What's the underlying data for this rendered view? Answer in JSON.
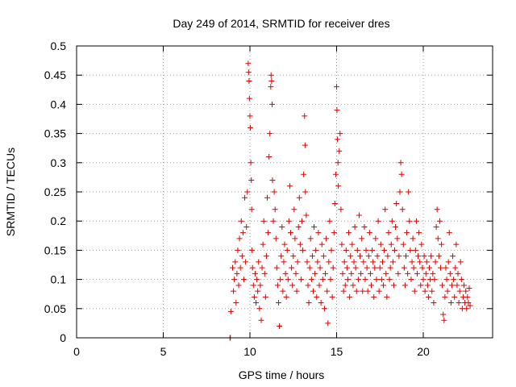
{
  "chart_data": {
    "type": "scatter",
    "title": "Day 249 of 2014, SRMTID for receiver dres",
    "xlabel": "GPS time / hours",
    "ylabel": "SRMTID / TECUs",
    "xlim": [
      0,
      24
    ],
    "ylim": [
      0,
      0.5
    ],
    "xticks": [
      0,
      5,
      10,
      15,
      20
    ],
    "yticks": [
      0,
      0.05,
      0.1,
      0.15,
      0.2,
      0.25,
      0.3,
      0.35,
      0.4,
      0.45,
      0.5
    ],
    "xtick_labels": [
      "0",
      "5",
      "10",
      "15",
      "20"
    ],
    "ytick_labels": [
      "0",
      "0.05",
      "0.1",
      "0.15",
      "0.2",
      "0.25",
      "0.3",
      "0.35",
      "0.4",
      "0.45",
      "0.5"
    ],
    "grid": true,
    "marker": "+",
    "color": "#e00000",
    "series": [
      {
        "name": "SRMTID",
        "points": [
          [
            8.85,
            0.0
          ],
          [
            8.87,
            0.0
          ],
          [
            8.9,
            0.045
          ],
          [
            9.0,
            0.12
          ],
          [
            9.05,
            0.08
          ],
          [
            9.1,
            0.1
          ],
          [
            9.15,
            0.13
          ],
          [
            9.2,
            0.06
          ],
          [
            9.25,
            0.11
          ],
          [
            9.3,
            0.15
          ],
          [
            9.35,
            0.09
          ],
          [
            9.4,
            0.17
          ],
          [
            9.45,
            0.12
          ],
          [
            9.5,
            0.2
          ],
          [
            9.55,
            0.14
          ],
          [
            9.6,
            0.18
          ],
          [
            9.65,
            0.1
          ],
          [
            9.7,
            0.24
          ],
          [
            9.75,
            0.13
          ],
          [
            9.8,
            0.19
          ],
          [
            9.85,
            0.25
          ],
          [
            9.9,
            0.47
          ],
          [
            9.92,
            0.455
          ],
          [
            9.95,
            0.44
          ],
          [
            9.97,
            0.41
          ],
          [
            10.0,
            0.38
          ],
          [
            10.02,
            0.36
          ],
          [
            10.05,
            0.3
          ],
          [
            10.08,
            0.27
          ],
          [
            10.1,
            0.22
          ],
          [
            10.12,
            0.15
          ],
          [
            10.15,
            0.12
          ],
          [
            10.2,
            0.09
          ],
          [
            10.25,
            0.07
          ],
          [
            10.3,
            0.11
          ],
          [
            10.35,
            0.06
          ],
          [
            10.4,
            0.1
          ],
          [
            10.45,
            0.08
          ],
          [
            10.5,
            0.13
          ],
          [
            10.55,
            0.05
          ],
          [
            10.6,
            0.09
          ],
          [
            10.65,
            0.03
          ],
          [
            10.7,
            0.12
          ],
          [
            10.75,
            0.16
          ],
          [
            10.8,
            0.2
          ],
          [
            10.85,
            0.11
          ],
          [
            10.9,
            0.07
          ],
          [
            10.95,
            0.14
          ],
          [
            11.0,
            0.24
          ],
          [
            11.05,
            0.18
          ],
          [
            11.1,
            0.31
          ],
          [
            11.15,
            0.35
          ],
          [
            11.2,
            0.43
          ],
          [
            11.22,
            0.45
          ],
          [
            11.25,
            0.44
          ],
          [
            11.28,
            0.4
          ],
          [
            11.3,
            0.27
          ],
          [
            11.35,
            0.2
          ],
          [
            11.4,
            0.25
          ],
          [
            11.45,
            0.22
          ],
          [
            11.5,
            0.17
          ],
          [
            11.55,
            0.12
          ],
          [
            11.6,
            0.09
          ],
          [
            11.65,
            0.06
          ],
          [
            11.7,
            0.02
          ],
          [
            11.75,
            0.1
          ],
          [
            11.8,
            0.14
          ],
          [
            11.85,
            0.19
          ],
          [
            11.9,
            0.08
          ],
          [
            11.95,
            0.13
          ],
          [
            12.0,
            0.16
          ],
          [
            12.05,
            0.11
          ],
          [
            12.1,
            0.07
          ],
          [
            12.15,
            0.15
          ],
          [
            12.2,
            0.1
          ],
          [
            12.25,
            0.2
          ],
          [
            12.3,
            0.26
          ],
          [
            12.35,
            0.18
          ],
          [
            12.4,
            0.12
          ],
          [
            12.45,
            0.09
          ],
          [
            12.5,
            0.14
          ],
          [
            12.55,
            0.22
          ],
          [
            12.6,
            0.17
          ],
          [
            12.65,
            0.11
          ],
          [
            12.7,
            0.08
          ],
          [
            12.75,
            0.13
          ],
          [
            12.8,
            0.19
          ],
          [
            12.85,
            0.24
          ],
          [
            12.9,
            0.16
          ],
          [
            12.95,
            0.1
          ],
          [
            13.0,
            0.2
          ],
          [
            13.05,
            0.15
          ],
          [
            13.1,
            0.28
          ],
          [
            13.15,
            0.38
          ],
          [
            13.18,
            0.33
          ],
          [
            13.2,
            0.25
          ],
          [
            13.25,
            0.21
          ],
          [
            13.3,
            0.13
          ],
          [
            13.35,
            0.09
          ],
          [
            13.4,
            0.06
          ],
          [
            13.45,
            0.12
          ],
          [
            13.5,
            0.17
          ],
          [
            13.55,
            0.1
          ],
          [
            13.6,
            0.14
          ],
          [
            13.65,
            0.08
          ],
          [
            13.7,
            0.19
          ],
          [
            13.75,
            0.11
          ],
          [
            13.8,
            0.15
          ],
          [
            13.85,
            0.07
          ],
          [
            13.9,
            0.13
          ],
          [
            13.95,
            0.18
          ],
          [
            14.0,
            0.09
          ],
          [
            14.05,
            0.12
          ],
          [
            14.1,
            0.06
          ],
          [
            14.15,
            0.16
          ],
          [
            14.2,
            0.1
          ],
          [
            14.25,
            0.14
          ],
          [
            14.3,
            0.05
          ],
          [
            14.35,
            0.11
          ],
          [
            14.4,
            0.17
          ],
          [
            14.45,
            0.08
          ],
          [
            14.5,
            0.025
          ],
          [
            14.55,
            0.13
          ],
          [
            14.6,
            0.2
          ],
          [
            14.65,
            0.1
          ],
          [
            14.7,
            0.15
          ],
          [
            14.75,
            0.07
          ],
          [
            14.8,
            0.12
          ],
          [
            14.85,
            0.18
          ],
          [
            14.9,
            0.23
          ],
          [
            14.95,
            0.28
          ],
          [
            15.0,
            0.43
          ],
          [
            15.02,
            0.39
          ],
          [
            15.05,
            0.34
          ],
          [
            15.08,
            0.3
          ],
          [
            15.1,
            0.26
          ],
          [
            15.15,
            0.32
          ],
          [
            15.2,
            0.35
          ],
          [
            15.25,
            0.22
          ],
          [
            15.3,
            0.16
          ],
          [
            15.35,
            0.11
          ],
          [
            15.4,
            0.08
          ],
          [
            15.45,
            0.13
          ],
          [
            15.5,
            0.09
          ],
          [
            15.55,
            0.15
          ],
          [
            15.6,
            0.12
          ],
          [
            15.65,
            0.1
          ],
          [
            15.7,
            0.18
          ],
          [
            15.75,
            0.07
          ],
          [
            15.8,
            0.14
          ],
          [
            15.85,
            0.11
          ],
          [
            15.9,
            0.16
          ],
          [
            15.95,
            0.09
          ],
          [
            16.0,
            0.13
          ],
          [
            16.05,
            0.19
          ],
          [
            16.1,
            0.12
          ],
          [
            16.15,
            0.08
          ],
          [
            16.2,
            0.15
          ],
          [
            16.25,
            0.1
          ],
          [
            16.3,
            0.21
          ],
          [
            16.35,
            0.14
          ],
          [
            16.4,
            0.11
          ],
          [
            16.45,
            0.17
          ],
          [
            16.5,
            0.08
          ],
          [
            16.55,
            0.13
          ],
          [
            16.6,
            0.19
          ],
          [
            16.65,
            0.1
          ],
          [
            16.7,
            0.15
          ],
          [
            16.75,
            0.12
          ],
          [
            16.8,
            0.08
          ],
          [
            16.85,
            0.14
          ],
          [
            16.9,
            0.18
          ],
          [
            16.95,
            0.11
          ],
          [
            17.0,
            0.09
          ],
          [
            17.05,
            0.15
          ],
          [
            17.1,
            0.13
          ],
          [
            17.15,
            0.07
          ],
          [
            17.2,
            0.12
          ],
          [
            17.25,
            0.17
          ],
          [
            17.3,
            0.1
          ],
          [
            17.35,
            0.14
          ],
          [
            17.4,
            0.2
          ],
          [
            17.45,
            0.08
          ],
          [
            17.5,
            0.12
          ],
          [
            17.55,
            0.16
          ],
          [
            17.6,
            0.1
          ],
          [
            17.65,
            0.13
          ],
          [
            17.7,
            0.09
          ],
          [
            17.75,
            0.15
          ],
          [
            17.8,
            0.22
          ],
          [
            17.85,
            0.11
          ],
          [
            17.9,
            0.07
          ],
          [
            17.95,
            0.14
          ],
          [
            18.0,
            0.18
          ],
          [
            18.05,
            0.1
          ],
          [
            18.1,
            0.12
          ],
          [
            18.15,
            0.16
          ],
          [
            18.2,
            0.2
          ],
          [
            18.25,
            0.13
          ],
          [
            18.3,
            0.09
          ],
          [
            18.35,
            0.15
          ],
          [
            18.4,
            0.19
          ],
          [
            18.45,
            0.23
          ],
          [
            18.5,
            0.17
          ],
          [
            18.55,
            0.11
          ],
          [
            18.6,
            0.14
          ],
          [
            18.65,
            0.25
          ],
          [
            18.7,
            0.3
          ],
          [
            18.75,
            0.28
          ],
          [
            18.8,
            0.22
          ],
          [
            18.85,
            0.16
          ],
          [
            18.9,
            0.12
          ],
          [
            18.95,
            0.09
          ],
          [
            19.0,
            0.14
          ],
          [
            19.05,
            0.18
          ],
          [
            19.1,
            0.11
          ],
          [
            19.15,
            0.25
          ],
          [
            19.2,
            0.2
          ],
          [
            19.25,
            0.15
          ],
          [
            19.3,
            0.1
          ],
          [
            19.35,
            0.13
          ],
          [
            19.4,
            0.17
          ],
          [
            19.45,
            0.12
          ],
          [
            19.5,
            0.08
          ],
          [
            19.55,
            0.15
          ],
          [
            19.6,
            0.2
          ],
          [
            19.65,
            0.11
          ],
          [
            19.7,
            0.14
          ],
          [
            19.75,
            0.18
          ],
          [
            19.8,
            0.13
          ],
          [
            19.85,
            0.09
          ],
          [
            19.9,
            0.16
          ],
          [
            19.95,
            0.12
          ],
          [
            20.0,
            0.1
          ],
          [
            20.05,
            0.14
          ],
          [
            20.1,
            0.08
          ],
          [
            20.15,
            0.11
          ],
          [
            20.2,
            0.13
          ],
          [
            20.25,
            0.09
          ],
          [
            20.3,
            0.07
          ],
          [
            20.35,
            0.12
          ],
          [
            20.4,
            0.1
          ],
          [
            20.45,
            0.14
          ],
          [
            20.5,
            0.08
          ],
          [
            20.55,
            0.11
          ],
          [
            20.6,
            0.06
          ],
          [
            20.65,
            0.1
          ],
          [
            20.7,
            0.13
          ],
          [
            20.75,
            0.19
          ],
          [
            20.8,
            0.22
          ],
          [
            20.85,
            0.17
          ],
          [
            20.9,
            0.14
          ],
          [
            20.95,
            0.2
          ],
          [
            21.0,
            0.12
          ],
          [
            21.05,
            0.16
          ],
          [
            21.1,
            0.09
          ],
          [
            21.15,
            0.04
          ],
          [
            21.2,
            0.03
          ],
          [
            21.25,
            0.07
          ],
          [
            21.3,
            0.12
          ],
          [
            21.35,
            0.1
          ],
          [
            21.4,
            0.08
          ],
          [
            21.45,
            0.13
          ],
          [
            21.5,
            0.18
          ],
          [
            21.55,
            0.11
          ],
          [
            21.6,
            0.06
          ],
          [
            21.65,
            0.09
          ],
          [
            21.7,
            0.14
          ],
          [
            21.75,
            0.1
          ],
          [
            21.8,
            0.07
          ],
          [
            21.85,
            0.12
          ],
          [
            21.9,
            0.16
          ],
          [
            21.95,
            0.09
          ],
          [
            22.0,
            0.11
          ],
          [
            22.05,
            0.06
          ],
          [
            22.1,
            0.08
          ],
          [
            22.15,
            0.13
          ],
          [
            22.2,
            0.1
          ],
          [
            22.25,
            0.05
          ],
          [
            22.3,
            0.07
          ],
          [
            22.35,
            0.09
          ],
          [
            22.4,
            0.06
          ],
          [
            22.45,
            0.08
          ],
          [
            22.5,
            0.05
          ],
          [
            22.55,
            0.07
          ],
          [
            22.6,
            0.06
          ],
          [
            22.65,
            0.085
          ],
          [
            22.7,
            0.055
          ]
        ]
      }
    ]
  }
}
